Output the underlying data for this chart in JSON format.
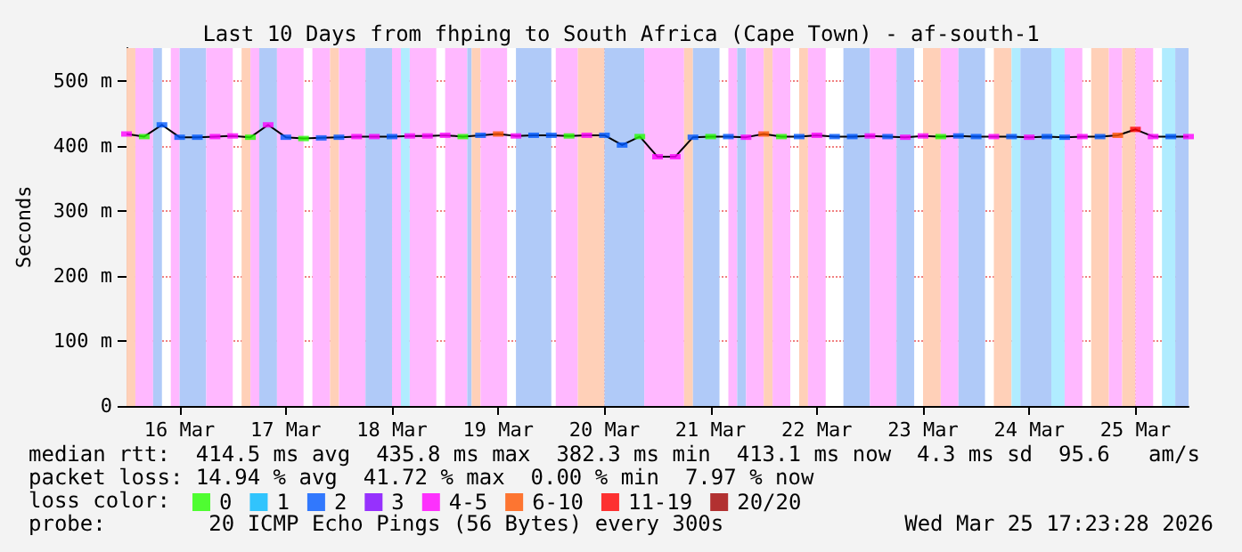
{
  "chart_data": {
    "type": "line",
    "title": "Last 10 Days from fhping to South Africa (Cape Town) - af-south-1",
    "ylabel": "Seconds",
    "legend_title": "loss color:",
    "legend": "bottom",
    "grid": true,
    "marker": "square",
    "xlim": [
      "2026-03-15T12:00",
      "2026-03-25T12:00"
    ],
    "xticks": [
      {
        "value": "2026-03-16T00:00",
        "label": "16 Mar"
      },
      {
        "value": "2026-03-17T00:00",
        "label": "17 Mar"
      },
      {
        "value": "2026-03-18T00:00",
        "label": "18 Mar"
      },
      {
        "value": "2026-03-19T00:00",
        "label": "19 Mar"
      },
      {
        "value": "2026-03-20T00:00",
        "label": "20 Mar"
      },
      {
        "value": "2026-03-21T00:00",
        "label": "21 Mar"
      },
      {
        "value": "2026-03-22T00:00",
        "label": "22 Mar"
      },
      {
        "value": "2026-03-23T00:00",
        "label": "23 Mar"
      },
      {
        "value": "2026-03-24T00:00",
        "label": "24 Mar"
      },
      {
        "value": "2026-03-25T00:00",
        "label": "25 Mar"
      }
    ],
    "ylim": [
      0,
      550
    ],
    "yticks": [
      0,
      {
        "value": 100,
        "label": "100 m"
      },
      {
        "value": 200,
        "label": "200 m"
      },
      {
        "value": 300,
        "label": "300 m"
      },
      {
        "value": 400,
        "label": "400 m"
      },
      {
        "value": 500,
        "label": "500 m"
      }
    ],
    "x": [
      "2026-03-15T12:00",
      "2026-03-15T16:00",
      "2026-03-15T20:00",
      "2026-03-16T00:00",
      "2026-03-16T04:00",
      "2026-03-16T08:00",
      "2026-03-16T12:00",
      "2026-03-16T16:00",
      "2026-03-16T20:00",
      "2026-03-17T00:00",
      "2026-03-17T04:00",
      "2026-03-17T08:00",
      "2026-03-17T12:00",
      "2026-03-17T16:00",
      "2026-03-17T20:00",
      "2026-03-18T00:00",
      "2026-03-18T04:00",
      "2026-03-18T08:00",
      "2026-03-18T12:00",
      "2026-03-18T16:00",
      "2026-03-18T20:00",
      "2026-03-19T00:00",
      "2026-03-19T04:00",
      "2026-03-19T08:00",
      "2026-03-19T12:00",
      "2026-03-19T16:00",
      "2026-03-19T20:00",
      "2026-03-20T00:00",
      "2026-03-20T04:00",
      "2026-03-20T08:00",
      "2026-03-20T12:00",
      "2026-03-20T16:00",
      "2026-03-20T20:00",
      "2026-03-21T00:00",
      "2026-03-21T04:00",
      "2026-03-21T08:00",
      "2026-03-21T12:00",
      "2026-03-21T16:00",
      "2026-03-21T20:00",
      "2026-03-22T00:00",
      "2026-03-22T04:00",
      "2026-03-22T08:00",
      "2026-03-22T12:00",
      "2026-03-22T16:00",
      "2026-03-22T20:00",
      "2026-03-23T00:00",
      "2026-03-23T04:00",
      "2026-03-23T08:00",
      "2026-03-23T12:00",
      "2026-03-23T16:00",
      "2026-03-23T20:00",
      "2026-03-24T00:00",
      "2026-03-24T04:00",
      "2026-03-24T08:00",
      "2026-03-24T12:00",
      "2026-03-24T16:00",
      "2026-03-24T20:00",
      "2026-03-25T00:00",
      "2026-03-25T04:00",
      "2026-03-25T08:00",
      "2026-03-25T12:00"
    ],
    "series": [
      {
        "marker": "none",
        "color": "#000000",
        "values": [
          418,
          414,
          432,
          413,
          413,
          414,
          415,
          413,
          432,
          413,
          411,
          412,
          413,
          414,
          414,
          414,
          415,
          415,
          416,
          414,
          416,
          418,
          415,
          416,
          416,
          415,
          416,
          416,
          401,
          414,
          383,
          383,
          413,
          414,
          414,
          413,
          418,
          414,
          414,
          416,
          414,
          414,
          415,
          414,
          413,
          415,
          414,
          415,
          414,
          414,
          414,
          413,
          414,
          413,
          414,
          414,
          416,
          425,
          414,
          414,
          414
        ]
      },
      {
        "type": "scatter",
        "name": "0",
        "color": "#26ff00",
        "x": [
          "2026-03-15T16:00",
          "2026-03-16T16:00",
          "2026-03-17T04:00",
          "2026-03-18T16:00",
          "2026-03-19T16:00",
          "2026-03-20T08:00",
          "2026-03-21T00:00",
          "2026-03-21T16:00",
          "2026-03-23T04:00"
        ],
        "values": [
          414,
          413,
          411,
          414,
          415,
          414,
          414,
          414,
          414
        ]
      },
      {
        "type": "scatter",
        "name": "1",
        "color": "#00b8ff",
        "values": [
          null,
          null,
          null,
          null,
          null,
          null,
          null,
          null,
          null,
          null,
          null,
          null,
          null,
          null,
          null,
          null,
          null,
          null,
          null,
          null,
          null,
          null,
          null,
          null,
          null,
          null,
          null,
          null,
          null,
          null,
          null,
          null,
          null,
          null,
          null,
          null,
          null,
          null,
          null,
          null,
          null,
          null,
          null,
          null,
          null,
          null,
          null,
          null,
          null,
          null,
          null,
          null,
          null,
          null,
          null,
          null,
          null,
          null,
          null,
          null,
          null
        ]
      },
      {
        "type": "scatter",
        "name": "2",
        "color": "#0059ff",
        "x": [
          "2026-03-15T20:00",
          "2026-03-16T00:00",
          "2026-03-16T04:00",
          "2026-03-17T00:00",
          "2026-03-17T08:00",
          "2026-03-17T12:00",
          "2026-03-18T00:00",
          "2026-03-18T20:00",
          "2026-03-19T08:00",
          "2026-03-19T12:00",
          "2026-03-20T00:00",
          "2026-03-20T04:00",
          "2026-03-20T20:00",
          "2026-03-21T04:00",
          "2026-03-21T20:00",
          "2026-03-22T04:00",
          "2026-03-22T08:00",
          "2026-03-22T16:00",
          "2026-03-23T08:00",
          "2026-03-23T12:00",
          "2026-03-23T20:00",
          "2026-03-24T04:00",
          "2026-03-24T08:00",
          "2026-03-24T16:00",
          "2026-03-25T08:00"
        ],
        "values": [
          432,
          413,
          413,
          413,
          412,
          413,
          414,
          416,
          416,
          416,
          416,
          401,
          413,
          414,
          414,
          414,
          414,
          414,
          415,
          414,
          414,
          414,
          413,
          414,
          414
        ]
      },
      {
        "type": "scatter",
        "name": "3",
        "color": "#7e00ff",
        "values": [
          null,
          null,
          null,
          null,
          null,
          null,
          null,
          null,
          null,
          null,
          null,
          null,
          null,
          null,
          null,
          null,
          null,
          null,
          null,
          null,
          null,
          null,
          null,
          null,
          null,
          null,
          null,
          null,
          null,
          null,
          null,
          null,
          null,
          null,
          null,
          null,
          null,
          null,
          null,
          null,
          null,
          null,
          null,
          null,
          null,
          null,
          null,
          null,
          null,
          null,
          null,
          null,
          null,
          null,
          null,
          null,
          null,
          null,
          null,
          null,
          null
        ]
      },
      {
        "type": "scatter",
        "name": "4-5",
        "color": "#ff00ff",
        "x": [
          "2026-03-15T12:00",
          "2026-03-16T08:00",
          "2026-03-16T12:00",
          "2026-03-16T20:00",
          "2026-03-17T16:00",
          "2026-03-17T20:00",
          "2026-03-18T04:00",
          "2026-03-18T08:00",
          "2026-03-18T12:00",
          "2026-03-19T04:00",
          "2026-03-19T20:00",
          "2026-03-20T12:00",
          "2026-03-20T16:00",
          "2026-03-21T08:00",
          "2026-03-22T00:00",
          "2026-03-22T12:00",
          "2026-03-22T20:00",
          "2026-03-23T00:00",
          "2026-03-23T16:00",
          "2026-03-24T00:00",
          "2026-03-24T12:00",
          "2026-03-25T04:00",
          "2026-03-25T12:00"
        ],
        "values": [
          418,
          414,
          415,
          432,
          414,
          414,
          415,
          415,
          416,
          415,
          416,
          383,
          383,
          413,
          416,
          415,
          413,
          415,
          414,
          413,
          414,
          414,
          414
        ]
      },
      {
        "type": "scatter",
        "name": "6-10",
        "color": "#ff5500",
        "x": [
          "2026-03-19T00:00",
          "2026-03-21T12:00",
          "2026-03-24T20:00"
        ],
        "values": [
          418,
          418,
          416
        ]
      },
      {
        "type": "scatter",
        "name": "11-19",
        "color": "#ff0000",
        "x": [
          "2026-03-25T00:00"
        ],
        "values": [
          425
        ]
      },
      {
        "type": "scatter",
        "name": "20/20",
        "color": "#a10000",
        "values": [
          null,
          null,
          null,
          null,
          null,
          null,
          null,
          null,
          null,
          null,
          null,
          null,
          null,
          null,
          null,
          null,
          null,
          null,
          null,
          null,
          null,
          null,
          null,
          null,
          null,
          null,
          null,
          null,
          null,
          null,
          null,
          null,
          null,
          null,
          null,
          null,
          null,
          null,
          null,
          null,
          null,
          null,
          null,
          null,
          null,
          null,
          null,
          null,
          null,
          null,
          null,
          null,
          null,
          null,
          null,
          null,
          null,
          null,
          null,
          null,
          null
        ]
      }
    ],
    "bands": [
      {
        "axis": "x",
        "from": "2026-03-15T12:00",
        "to": "2026-03-15T14:00",
        "color": "#ffd0b8"
      },
      {
        "axis": "x",
        "from": "2026-03-15T14:00",
        "to": "2026-03-15T18:00",
        "color": "#ffb8ff"
      },
      {
        "axis": "x",
        "from": "2026-03-15T18:00",
        "to": "2026-03-15T20:00",
        "color": "#b0caf8"
      },
      {
        "axis": "x",
        "from": "2026-03-15T22:00",
        "to": "2026-03-16T00:00",
        "color": "#ffb8ff"
      },
      {
        "axis": "x",
        "from": "2026-03-16T00:00",
        "to": "2026-03-16T06:00",
        "color": "#b0caf8"
      },
      {
        "axis": "x",
        "from": "2026-03-16T06:00",
        "to": "2026-03-16T12:00",
        "color": "#ffb8ff"
      },
      {
        "axis": "x",
        "from": "2026-03-16T14:00",
        "to": "2026-03-16T16:00",
        "color": "#ffd0b8"
      },
      {
        "axis": "x",
        "from": "2026-03-16T16:00",
        "to": "2026-03-16T18:00",
        "color": "#ffb8ff"
      },
      {
        "axis": "x",
        "from": "2026-03-16T18:00",
        "to": "2026-03-16T22:00",
        "color": "#b0caf8"
      },
      {
        "axis": "x",
        "from": "2026-03-16T22:00",
        "to": "2026-03-17T04:00",
        "color": "#ffb8ff"
      },
      {
        "axis": "x",
        "from": "2026-03-17T06:00",
        "to": "2026-03-17T10:00",
        "color": "#ffb8ff"
      },
      {
        "axis": "x",
        "from": "2026-03-17T10:00",
        "to": "2026-03-17T12:00",
        "color": "#ffd0b8"
      },
      {
        "axis": "x",
        "from": "2026-03-17T12:00",
        "to": "2026-03-17T18:00",
        "color": "#ffb8ff"
      },
      {
        "axis": "x",
        "from": "2026-03-17T18:00",
        "to": "2026-03-18T00:00",
        "color": "#b0caf8"
      },
      {
        "axis": "x",
        "from": "2026-03-18T00:00",
        "to": "2026-03-18T02:00",
        "color": "#ffb8ff"
      },
      {
        "axis": "x",
        "from": "2026-03-18T02:00",
        "to": "2026-03-18T04:00",
        "color": "#b0ecff"
      },
      {
        "axis": "x",
        "from": "2026-03-18T04:00",
        "to": "2026-03-18T10:00",
        "color": "#ffb8ff"
      },
      {
        "axis": "x",
        "from": "2026-03-18T12:00",
        "to": "2026-03-18T17:00",
        "color": "#ffb8ff"
      },
      {
        "axis": "x",
        "from": "2026-03-18T17:00",
        "to": "2026-03-18T18:00",
        "color": "#b0caf8"
      },
      {
        "axis": "x",
        "from": "2026-03-18T18:00",
        "to": "2026-03-18T20:00",
        "color": "#ffd0b8"
      },
      {
        "axis": "x",
        "from": "2026-03-18T20:00",
        "to": "2026-03-19T02:00",
        "color": "#ffb8ff"
      },
      {
        "axis": "x",
        "from": "2026-03-19T04:00",
        "to": "2026-03-19T12:00",
        "color": "#b0caf8"
      },
      {
        "axis": "x",
        "from": "2026-03-19T13:00",
        "to": "2026-03-19T18:00",
        "color": "#ffb8ff"
      },
      {
        "axis": "x",
        "from": "2026-03-19T18:00",
        "to": "2026-03-20T00:00",
        "color": "#ffd0b8"
      },
      {
        "axis": "x",
        "from": "2026-03-20T00:00",
        "to": "2026-03-20T09:00",
        "color": "#b0caf8"
      },
      {
        "axis": "x",
        "from": "2026-03-20T09:00",
        "to": "2026-03-20T18:00",
        "color": "#ffb8ff"
      },
      {
        "axis": "x",
        "from": "2026-03-20T18:00",
        "to": "2026-03-20T20:00",
        "color": "#ffd0b8"
      },
      {
        "axis": "x",
        "from": "2026-03-20T20:00",
        "to": "2026-03-21T02:00",
        "color": "#b0caf8"
      },
      {
        "axis": "x",
        "from": "2026-03-21T04:00",
        "to": "2026-03-21T06:00",
        "color": "#ffb8ff"
      },
      {
        "axis": "x",
        "from": "2026-03-21T06:00",
        "to": "2026-03-21T08:00",
        "color": "#b0caf8"
      },
      {
        "axis": "x",
        "from": "2026-03-21T08:00",
        "to": "2026-03-21T12:00",
        "color": "#ffb8ff"
      },
      {
        "axis": "x",
        "from": "2026-03-21T12:00",
        "to": "2026-03-21T14:00",
        "color": "#ffd0b8"
      },
      {
        "axis": "x",
        "from": "2026-03-21T14:00",
        "to": "2026-03-21T18:00",
        "color": "#ffb8ff"
      },
      {
        "axis": "x",
        "from": "2026-03-21T20:00",
        "to": "2026-03-21T22:00",
        "color": "#ffd0b8"
      },
      {
        "axis": "x",
        "from": "2026-03-21T22:00",
        "to": "2026-03-22T02:00",
        "color": "#ffb8ff"
      },
      {
        "axis": "x",
        "from": "2026-03-22T06:00",
        "to": "2026-03-22T12:00",
        "color": "#b0caf8"
      },
      {
        "axis": "x",
        "from": "2026-03-22T12:00",
        "to": "2026-03-22T18:00",
        "color": "#ffb8ff"
      },
      {
        "axis": "x",
        "from": "2026-03-22T18:00",
        "to": "2026-03-22T22:00",
        "color": "#b0caf8"
      },
      {
        "axis": "x",
        "from": "2026-03-23T00:00",
        "to": "2026-03-23T04:00",
        "color": "#ffd0b8"
      },
      {
        "axis": "x",
        "from": "2026-03-23T04:00",
        "to": "2026-03-23T08:00",
        "color": "#ffb8ff"
      },
      {
        "axis": "x",
        "from": "2026-03-23T08:00",
        "to": "2026-03-23T14:00",
        "color": "#b0caf8"
      },
      {
        "axis": "x",
        "from": "2026-03-23T16:00",
        "to": "2026-03-23T20:00",
        "color": "#ffd0b8"
      },
      {
        "axis": "x",
        "from": "2026-03-23T20:00",
        "to": "2026-03-23T22:00",
        "color": "#b0ecff"
      },
      {
        "axis": "x",
        "from": "2026-03-23T22:00",
        "to": "2026-03-24T05:00",
        "color": "#b0caf8"
      },
      {
        "axis": "x",
        "from": "2026-03-24T05:00",
        "to": "2026-03-24T08:00",
        "color": "#b0ecff"
      },
      {
        "axis": "x",
        "from": "2026-03-24T08:00",
        "to": "2026-03-24T12:00",
        "color": "#ffb8ff"
      },
      {
        "axis": "x",
        "from": "2026-03-24T14:00",
        "to": "2026-03-24T18:00",
        "color": "#ffd0b8"
      },
      {
        "axis": "x",
        "from": "2026-03-24T18:00",
        "to": "2026-03-24T21:00",
        "color": "#ffb8ff"
      },
      {
        "axis": "x",
        "from": "2026-03-24T21:00",
        "to": "2026-03-25T00:00",
        "color": "#ffd0b8"
      },
      {
        "axis": "x",
        "from": "2026-03-25T00:00",
        "to": "2026-03-25T04:00",
        "color": "#ffb8ff"
      },
      {
        "axis": "x",
        "from": "2026-03-25T06:00",
        "to": "2026-03-25T09:00",
        "color": "#b0ecff"
      },
      {
        "axis": "x",
        "from": "2026-03-25T09:00",
        "to": "2026-03-25T12:00",
        "color": "#b0caf8"
      }
    ],
    "annotations": [
      "median rtt:  414.5 ms avg  435.8 ms max  382.3 ms min  413.1 ms now  4.3 ms sd  95.6   am/s",
      "packet loss: 14.94 % avg  41.72 % max  0.00 % min  7.97 % now",
      "probe:        20 ICMP Echo Pings (56 Bytes) every 300s",
      "Wed Mar 25 17:23:28 2026"
    ]
  }
}
